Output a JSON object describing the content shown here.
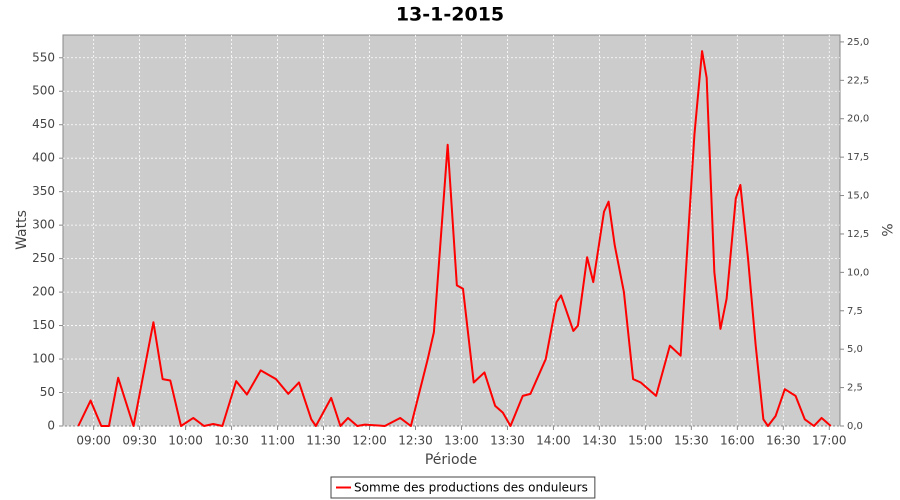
{
  "chart_data": {
    "type": "line",
    "title": "13-1-2015",
    "x_label": "Période",
    "y_label": "Watts",
    "y2_label": "%",
    "x": [
      "08:50",
      "08:58",
      "09:05",
      "09:10",
      "09:16",
      "09:26",
      "09:39",
      "09:45",
      "09:50",
      "09:57",
      "10:05",
      "10:12",
      "10:18",
      "10:24",
      "10:33",
      "10:40",
      "10:49",
      "10:59",
      "11:07",
      "11:14",
      "11:22",
      "11:25",
      "11:35",
      "11:41",
      "11:46",
      "11:52",
      "11:57",
      "12:10",
      "12:20",
      "12:27",
      "12:38",
      "12:42",
      "12:51",
      "12:57",
      "13:01",
      "13:08",
      "13:15",
      "13:22",
      "13:27",
      "13:32",
      "13:40",
      "13:45",
      "13:55",
      "14:02",
      "14:05",
      "14:13",
      "14:16",
      "14:22",
      "14:26",
      "14:33",
      "14:36",
      "14:40",
      "14:46",
      "14:52",
      "14:57",
      "15:07",
      "15:16",
      "15:23",
      "15:32",
      "15:37",
      "15:40",
      "15:45",
      "15:49",
      "15:53",
      "15:59",
      "16:02",
      "16:07",
      "16:12",
      "16:17",
      "16:20",
      "16:25",
      "16:31",
      "16:38",
      "16:44",
      "16:50",
      "16:55",
      "17:01"
    ],
    "series": [
      {
        "name": "Somme des productions des onduleurs",
        "color": "#ff0000",
        "values": [
          0,
          38,
          0,
          0,
          72,
          0,
          155,
          70,
          68,
          0,
          12,
          0,
          3,
          0,
          67,
          47,
          83,
          70,
          48,
          65,
          10,
          0,
          42,
          0,
          12,
          0,
          2,
          0,
          12,
          0,
          100,
          140,
          420,
          210,
          205,
          65,
          80,
          30,
          20,
          0,
          45,
          48,
          100,
          185,
          195,
          142,
          150,
          252,
          215,
          320,
          335,
          270,
          200,
          70,
          65,
          45,
          120,
          105,
          435,
          560,
          520,
          230,
          145,
          190,
          340,
          360,
          250,
          120,
          10,
          0,
          15,
          55,
          45,
          10,
          0,
          12,
          0
        ]
      }
    ],
    "xlim": [
      "08:40",
      "17:07"
    ],
    "xticks": [
      "09:00",
      "09:30",
      "10:00",
      "10:30",
      "11:00",
      "11:30",
      "12:00",
      "12:30",
      "13:00",
      "13:30",
      "14:00",
      "14:30",
      "15:00",
      "15:30",
      "16:00",
      "16:30",
      "17:00"
    ],
    "ylim": [
      0,
      584
    ],
    "yticks": [
      0,
      50,
      100,
      150,
      200,
      250,
      300,
      350,
      400,
      450,
      500,
      550
    ],
    "y2lim": [
      0,
      25.45
    ],
    "y2ticks": [
      {
        "value": 0,
        "label": "0,0"
      },
      {
        "value": 2.5,
        "label": "2,5"
      },
      {
        "value": 5,
        "label": "5,0"
      },
      {
        "value": 7.5,
        "label": "7,5"
      },
      {
        "value": 10,
        "label": "10,0"
      },
      {
        "value": 12.5,
        "label": "12,5"
      },
      {
        "value": 15,
        "label": "15,0"
      },
      {
        "value": 17.5,
        "label": "17,5"
      },
      {
        "value": 20,
        "label": "20,0"
      },
      {
        "value": 22.5,
        "label": "22,5"
      },
      {
        "value": 25,
        "label": "25,0"
      }
    ],
    "grid": true,
    "plot_background": "#cccccc",
    "legend_position": "bottom"
  }
}
